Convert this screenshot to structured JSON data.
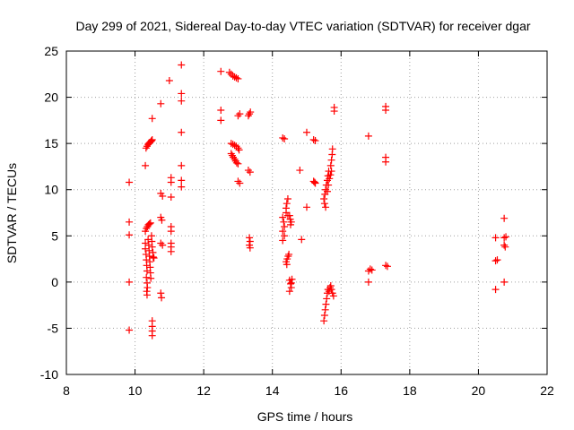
{
  "chart_data": {
    "type": "scatter",
    "title": "Day 299 of 2021, Sidereal Day-to-day VTEC variation (SDTVAR) for receiver dgar",
    "xlabel": "GPS time / hours",
    "ylabel": "SDTVAR / TECUs",
    "xlim": [
      8,
      22
    ],
    "ylim": [
      -10,
      25
    ],
    "xticks": [
      "8",
      "10",
      "12",
      "14",
      "16",
      "18",
      "20",
      "22"
    ],
    "yticks": [
      "-10",
      "-5",
      "0",
      "5",
      "10",
      "15",
      "20",
      "25"
    ],
    "grid": true,
    "marker": "+",
    "color": "#ff0000",
    "points": [
      [
        9.83,
        10.8
      ],
      [
        9.83,
        6.5
      ],
      [
        9.83,
        5.1
      ],
      [
        9.83,
        0.0
      ],
      [
        9.83,
        -5.2
      ],
      [
        10.3,
        12.6
      ],
      [
        10.32,
        14.5
      ],
      [
        10.35,
        14.7
      ],
      [
        10.38,
        14.9
      ],
      [
        10.4,
        15.0
      ],
      [
        10.43,
        15.1
      ],
      [
        10.46,
        15.2
      ],
      [
        10.48,
        15.3
      ],
      [
        10.5,
        15.4
      ],
      [
        10.3,
        5.5
      ],
      [
        10.33,
        5.8
      ],
      [
        10.36,
        6.0
      ],
      [
        10.39,
        6.2
      ],
      [
        10.42,
        6.3
      ],
      [
        10.45,
        6.4
      ],
      [
        10.3,
        4.2
      ],
      [
        10.3,
        3.6
      ],
      [
        10.32,
        3.0
      ],
      [
        10.33,
        2.4
      ],
      [
        10.34,
        1.8
      ],
      [
        10.35,
        1.2
      ],
      [
        10.33,
        0.5
      ],
      [
        10.35,
        -0.1
      ],
      [
        10.36,
        -0.6
      ],
      [
        10.34,
        -1.0
      ],
      [
        10.35,
        -1.4
      ],
      [
        10.38,
        4.6
      ],
      [
        10.4,
        4.0
      ],
      [
        10.41,
        3.4
      ],
      [
        10.42,
        2.8
      ],
      [
        10.43,
        2.2
      ],
      [
        10.44,
        1.6
      ],
      [
        10.45,
        1.0
      ],
      [
        10.46,
        0.4
      ],
      [
        10.48,
        5.0
      ],
      [
        10.49,
        4.4
      ],
      [
        10.5,
        3.8
      ],
      [
        10.52,
        3.2
      ],
      [
        10.53,
        2.7
      ],
      [
        10.55,
        2.6
      ],
      [
        10.5,
        17.7
      ],
      [
        10.5,
        -4.2
      ],
      [
        10.5,
        -4.8
      ],
      [
        10.5,
        -5.3
      ],
      [
        10.5,
        -5.8
      ],
      [
        10.75,
        19.3
      ],
      [
        10.75,
        9.6
      ],
      [
        10.8,
        9.3
      ],
      [
        10.75,
        7.0
      ],
      [
        10.78,
        6.7
      ],
      [
        10.75,
        4.2
      ],
      [
        10.8,
        4.0
      ],
      [
        10.75,
        -1.2
      ],
      [
        10.77,
        -1.7
      ],
      [
        11.0,
        21.8
      ],
      [
        11.05,
        11.3
      ],
      [
        11.05,
        10.8
      ],
      [
        11.05,
        9.2
      ],
      [
        11.05,
        6.0
      ],
      [
        11.05,
        5.5
      ],
      [
        11.05,
        4.2
      ],
      [
        11.05,
        3.8
      ],
      [
        11.05,
        3.3
      ],
      [
        11.35,
        23.5
      ],
      [
        11.35,
        20.4
      ],
      [
        11.35,
        19.6
      ],
      [
        11.35,
        16.2
      ],
      [
        11.35,
        12.6
      ],
      [
        11.35,
        11.0
      ],
      [
        11.35,
        10.3
      ],
      [
        12.5,
        22.8
      ],
      [
        12.5,
        18.6
      ],
      [
        12.5,
        17.5
      ],
      [
        12.75,
        22.7
      ],
      [
        12.8,
        22.5
      ],
      [
        12.85,
        22.3
      ],
      [
        12.9,
        22.2
      ],
      [
        12.95,
        22.1
      ],
      [
        13.0,
        22.0
      ],
      [
        12.8,
        15.0
      ],
      [
        12.85,
        14.9
      ],
      [
        12.9,
        14.8
      ],
      [
        12.95,
        14.7
      ],
      [
        13.0,
        14.5
      ],
      [
        13.03,
        14.3
      ],
      [
        12.8,
        13.9
      ],
      [
        12.83,
        13.7
      ],
      [
        12.86,
        13.5
      ],
      [
        12.9,
        13.3
      ],
      [
        12.93,
        13.1
      ],
      [
        12.96,
        12.9
      ],
      [
        13.0,
        12.8
      ],
      [
        13.0,
        18.0
      ],
      [
        13.05,
        18.2
      ],
      [
        13.0,
        10.9
      ],
      [
        13.05,
        10.7
      ],
      [
        13.3,
        18.0
      ],
      [
        13.33,
        18.2
      ],
      [
        13.36,
        18.4
      ],
      [
        13.3,
        12.1
      ],
      [
        13.35,
        11.9
      ],
      [
        13.33,
        4.8
      ],
      [
        13.35,
        4.4
      ],
      [
        13.33,
        4.0
      ],
      [
        13.35,
        3.7
      ],
      [
        14.3,
        15.6
      ],
      [
        14.35,
        15.5
      ],
      [
        14.3,
        7.0
      ],
      [
        14.33,
        6.5
      ],
      [
        14.35,
        6.0
      ],
      [
        14.3,
        5.5
      ],
      [
        14.35,
        5.0
      ],
      [
        14.3,
        4.5
      ],
      [
        14.4,
        8.0
      ],
      [
        14.42,
        8.5
      ],
      [
        14.45,
        9.0
      ],
      [
        14.4,
        7.5
      ],
      [
        14.45,
        7.2
      ],
      [
        14.5,
        7.2
      ],
      [
        14.52,
        6.8
      ],
      [
        14.55,
        6.5
      ],
      [
        14.53,
        6.2
      ],
      [
        14.4,
        2.2
      ],
      [
        14.43,
        2.5
      ],
      [
        14.46,
        2.8
      ],
      [
        14.48,
        3.0
      ],
      [
        14.42,
        1.9
      ],
      [
        14.5,
        0.2
      ],
      [
        14.53,
        -0.2
      ],
      [
        14.55,
        -0.6
      ],
      [
        14.5,
        -1.0
      ],
      [
        14.55,
        -0.1
      ],
      [
        14.57,
        0.3
      ],
      [
        14.8,
        12.1
      ],
      [
        14.85,
        4.6
      ],
      [
        15.0,
        16.2
      ],
      [
        15.0,
        8.1
      ],
      [
        15.2,
        15.4
      ],
      [
        15.25,
        15.3
      ],
      [
        15.2,
        10.9
      ],
      [
        15.23,
        10.8
      ],
      [
        15.25,
        10.7
      ],
      [
        15.5,
        9.0
      ],
      [
        15.52,
        8.5
      ],
      [
        15.55,
        8.1
      ],
      [
        15.53,
        9.5
      ],
      [
        15.55,
        10.0
      ],
      [
        15.57,
        10.5
      ],
      [
        15.6,
        11.0
      ],
      [
        15.62,
        11.5
      ],
      [
        15.64,
        12.0
      ],
      [
        15.6,
        9.8
      ],
      [
        15.63,
        10.5
      ],
      [
        15.66,
        11.2
      ],
      [
        15.69,
        11.6
      ],
      [
        15.72,
        12.0
      ],
      [
        15.7,
        12.6
      ],
      [
        15.72,
        13.2
      ],
      [
        15.74,
        13.8
      ],
      [
        15.75,
        14.4
      ],
      [
        15.5,
        -4.2
      ],
      [
        15.52,
        -3.6
      ],
      [
        15.54,
        -3.0
      ],
      [
        15.56,
        -2.4
      ],
      [
        15.58,
        -1.8
      ],
      [
        15.6,
        -1.2
      ],
      [
        15.62,
        -0.8
      ],
      [
        15.65,
        -1.0
      ],
      [
        15.68,
        -0.6
      ],
      [
        15.7,
        -0.4
      ],
      [
        15.72,
        -0.8
      ],
      [
        15.75,
        -1.2
      ],
      [
        15.78,
        -1.5
      ],
      [
        15.8,
        18.5
      ],
      [
        15.8,
        18.9
      ],
      [
        16.8,
        15.8
      ],
      [
        16.8,
        1.2
      ],
      [
        16.85,
        1.4
      ],
      [
        16.9,
        1.3
      ],
      [
        16.8,
        0.0
      ],
      [
        17.3,
        18.6
      ],
      [
        17.3,
        19.0
      ],
      [
        17.3,
        13.5
      ],
      [
        17.3,
        13.0
      ],
      [
        17.3,
        1.8
      ],
      [
        17.35,
        1.7
      ],
      [
        20.5,
        4.8
      ],
      [
        20.5,
        2.3
      ],
      [
        20.55,
        2.4
      ],
      [
        20.5,
        -0.8
      ],
      [
        20.75,
        6.9
      ],
      [
        20.75,
        4.8
      ],
      [
        20.8,
        4.9
      ],
      [
        20.75,
        4.0
      ],
      [
        20.78,
        3.8
      ],
      [
        20.75,
        0.0
      ]
    ]
  }
}
